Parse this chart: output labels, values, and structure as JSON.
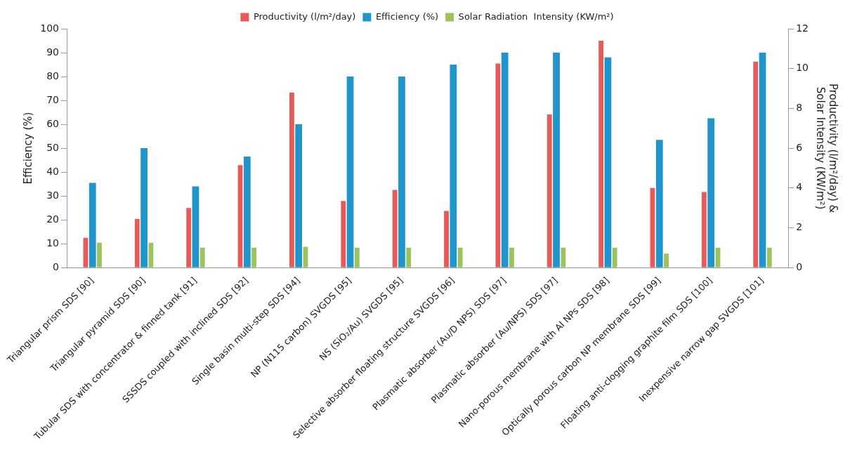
{
  "chart_data": {
    "type": "bar",
    "ylabel": "Efficiency (%)",
    "y2label": "Productivity (l/m²/day) &\nSolar Intensity (KW/m²)",
    "categories": [
      "Triangular prism SDS [90]",
      "Triangular pyramid SDS [90]",
      "Tubular SDS with concentrator & finned tank [91]",
      "SSSDS coupled with inclined SDS [92]",
      "Single basin multi-step SDS [94]",
      "NP (N115 carbon) SVGDS [95]",
      "NS (SiO₂/Au) SVGDS [95]",
      "Selective absorber floating structure SVGDS [96]",
      "Plasmatic absorber (Au/D NPS) SDS [97]",
      "Plasmatic absorber (Au/NPS) SDS [97]",
      "Nano-porous membrane with Al NPs SDS [98]",
      "Optically porous carbon NP membrane SDS [99]",
      "Floating anti-clogging graphite film SDS [100]",
      "Inexpensive narrow gap SVGDS [101]"
    ],
    "series": [
      {
        "name": "Productivity (l/m²/day)",
        "color": "#e85a57",
        "axis": "y2",
        "values": [
          1.5,
          2.45,
          3.0,
          5.15,
          8.8,
          3.35,
          3.9,
          2.85,
          10.25,
          7.7,
          11.4,
          4.0,
          3.8,
          10.35
        ]
      },
      {
        "name": "Efficiency (%)",
        "color": "#1f95cc",
        "values": [
          35.5,
          50,
          34,
          46.5,
          60,
          80,
          80,
          85,
          90,
          90,
          88,
          53.5,
          62.5,
          90
        ]
      },
      {
        "name": "Solar Radiation  Intensity (KW/m²)",
        "color": "#9bc45e",
        "axis": "y2",
        "values": [
          1.25,
          1.25,
          1.0,
          1.0,
          1.05,
          1.0,
          1.0,
          1.0,
          1.0,
          1.0,
          1.0,
          0.7,
          1.0,
          1.0
        ]
      }
    ],
    "ylim": [
      0,
      100
    ],
    "yticks": [
      0,
      10,
      20,
      30,
      40,
      50,
      60,
      70,
      80,
      90,
      100
    ],
    "y2lim": [
      0,
      12
    ],
    "y2ticks": [
      0,
      2,
      4,
      6,
      8,
      10,
      12
    ],
    "grid": false,
    "legend": "top"
  }
}
